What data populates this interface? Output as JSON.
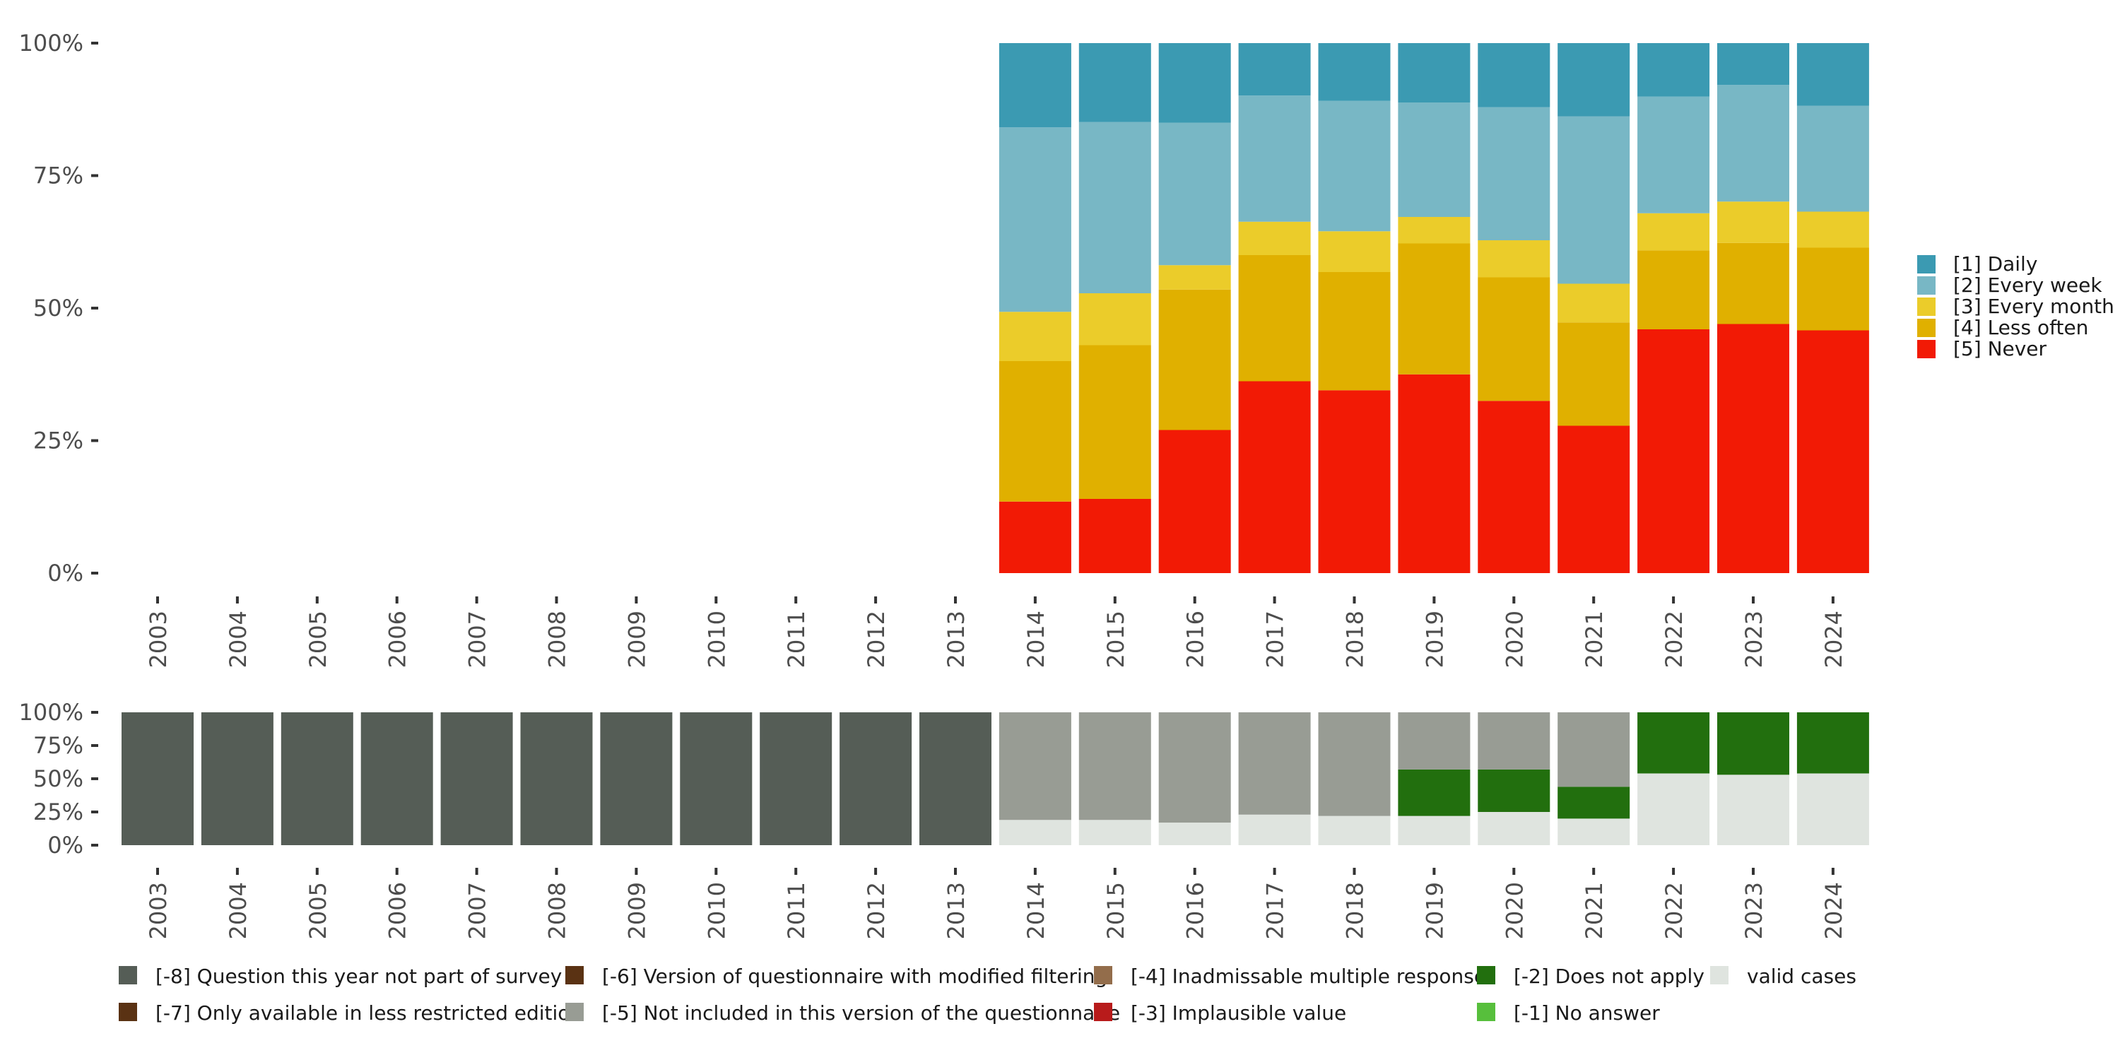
{
  "chart_data": [
    {
      "type": "bar",
      "stacked": true,
      "percent": true,
      "categories": [
        "2003",
        "2004",
        "2005",
        "2006",
        "2007",
        "2008",
        "2009",
        "2010",
        "2011",
        "2012",
        "2013",
        "2014",
        "2015",
        "2016",
        "2017",
        "2018",
        "2019",
        "2020",
        "2021",
        "2022",
        "2023",
        "2024"
      ],
      "series": [
        {
          "name": "[5] Never",
          "color": "#f21a05",
          "values": [
            null,
            null,
            null,
            null,
            null,
            null,
            null,
            null,
            null,
            null,
            null,
            13.5,
            14.0,
            27.0,
            36.2,
            34.5,
            37.5,
            32.5,
            27.8,
            46.0,
            47.0,
            45.8
          ]
        },
        {
          "name": "[4] Less often",
          "color": "#e0b000",
          "values": [
            null,
            null,
            null,
            null,
            null,
            null,
            null,
            null,
            null,
            null,
            null,
            26.5,
            29.0,
            26.5,
            23.8,
            22.3,
            24.7,
            23.3,
            19.5,
            14.9,
            15.3,
            15.6
          ]
        },
        {
          "name": "[3] Every month",
          "color": "#ebcc2a",
          "values": [
            null,
            null,
            null,
            null,
            null,
            null,
            null,
            null,
            null,
            null,
            null,
            9.3,
            9.8,
            4.6,
            6.3,
            7.7,
            5.0,
            7.0,
            7.3,
            7.0,
            7.8,
            6.8
          ]
        },
        {
          "name": "[2] Every week",
          "color": "#78b7c5",
          "values": [
            null,
            null,
            null,
            null,
            null,
            null,
            null,
            null,
            null,
            null,
            null,
            34.8,
            32.3,
            26.9,
            23.8,
            24.6,
            21.6,
            25.1,
            31.6,
            22.0,
            22.0,
            20.0
          ]
        },
        {
          "name": "[1] Daily",
          "color": "#3b9ab2",
          "values": [
            null,
            null,
            null,
            null,
            null,
            null,
            null,
            null,
            null,
            null,
            null,
            15.9,
            14.9,
            15.0,
            9.9,
            10.9,
            11.2,
            12.1,
            13.8,
            10.1,
            7.9,
            11.8
          ]
        }
      ],
      "yticks": [
        "0%",
        "25%",
        "50%",
        "75%",
        "100%"
      ],
      "ylim": [
        0,
        100
      ],
      "legend": "right"
    },
    {
      "type": "bar",
      "stacked": true,
      "percent": true,
      "categories": [
        "2003",
        "2004",
        "2005",
        "2006",
        "2007",
        "2008",
        "2009",
        "2010",
        "2011",
        "2012",
        "2013",
        "2014",
        "2015",
        "2016",
        "2017",
        "2018",
        "2019",
        "2020",
        "2021",
        "2022",
        "2023",
        "2024"
      ],
      "series": [
        {
          "name": "valid cases",
          "color": "#dfe4df",
          "values": [
            0,
            0,
            0,
            0,
            0,
            0,
            0,
            0,
            0,
            0,
            0,
            19,
            19,
            17,
            23,
            22,
            22,
            25,
            20,
            54,
            53,
            54
          ]
        },
        {
          "name": "[-2] Does not apply",
          "color": "#226f0e",
          "values": [
            0,
            0,
            0,
            0,
            0,
            0,
            0,
            0,
            0,
            0,
            0,
            0,
            0,
            0,
            0,
            0,
            35,
            32,
            24,
            46,
            47,
            46
          ]
        },
        {
          "name": "[-5] Not included in this version of the questionnaire",
          "color": "#989c94",
          "values": [
            0,
            0,
            0,
            0,
            0,
            0,
            0,
            0,
            0,
            0,
            0,
            81,
            81,
            83,
            77,
            78,
            43,
            43,
            56,
            0,
            0,
            0
          ]
        },
        {
          "name": "[-8] Question this year not part of survey",
          "color": "#555d56",
          "values": [
            100,
            100,
            100,
            100,
            100,
            100,
            100,
            100,
            100,
            100,
            100,
            0,
            0,
            0,
            0,
            0,
            0,
            0,
            0,
            0,
            0,
            0
          ]
        }
      ],
      "yticks": [
        "0%",
        "25%",
        "50%",
        "75%",
        "100%"
      ],
      "ylim": [
        0,
        100
      ],
      "legend": "bottom"
    }
  ],
  "legend_right": [
    {
      "label": "[1] Daily",
      "color": "#3b9ab2"
    },
    {
      "label": "[2] Every week",
      "color": "#78b7c5"
    },
    {
      "label": "[3] Every month",
      "color": "#ebcc2a"
    },
    {
      "label": "[4] Less often",
      "color": "#e0b000"
    },
    {
      "label": "[5] Never",
      "color": "#f21a05"
    }
  ],
  "legend_bottom": [
    {
      "label": "[-8] Question this year not part of survey",
      "color": "#555d56"
    },
    {
      "label": "[-7] Only available in less restricted edition",
      "color": "#5a3213"
    },
    {
      "label": "[-6] Version of questionnaire with modified filtering",
      "color": "#5a3213"
    },
    {
      "label": "[-5] Not included in this version of the questionnaire",
      "color": "#989c94"
    },
    {
      "label": "[-4] Inadmissable multiple response",
      "color": "#936d4b"
    },
    {
      "label": "[-3] Implausible value",
      "color": "#b81b1b"
    },
    {
      "label": "[-2] Does not apply",
      "color": "#226f0e"
    },
    {
      "label": "[-1] No answer",
      "color": "#57bf3c"
    },
    {
      "label": "valid cases",
      "color": "#dfe4df"
    }
  ]
}
